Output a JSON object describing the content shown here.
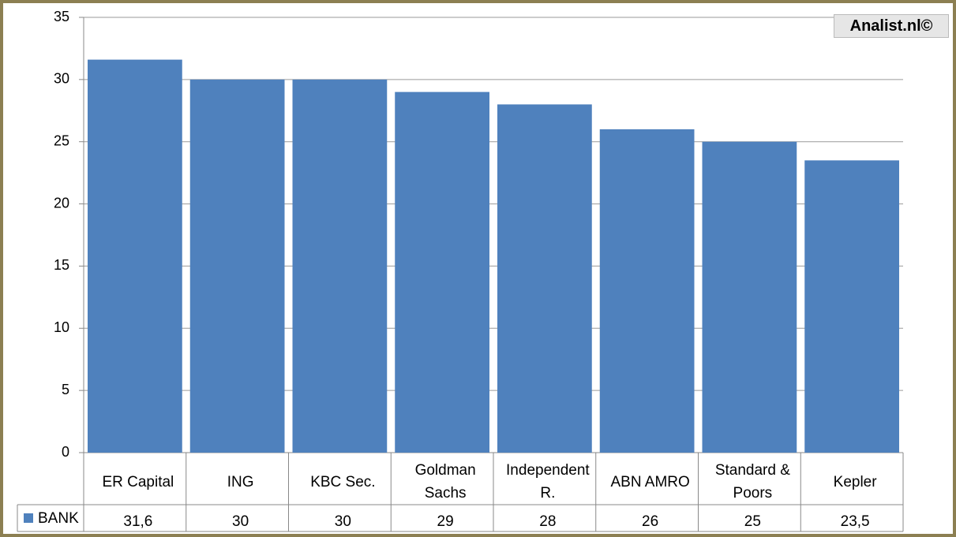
{
  "chart_data": {
    "type": "bar",
    "watermark": "Analist.nl©",
    "categories": [
      "ER Capital",
      "ING",
      "KBC Sec.",
      "Goldman Sachs",
      "Independent R.",
      "ABN AMRO",
      "Standard & Poors",
      "Kepler"
    ],
    "series": [
      {
        "name": "BANK",
        "color": "#4f81bd",
        "values": [
          31.6,
          30,
          30,
          29,
          28,
          26,
          25,
          23.5
        ],
        "value_labels": [
          "31,6",
          "30",
          "30",
          "29",
          "28",
          "26",
          "25",
          "23,5"
        ]
      }
    ],
    "ylim": [
      0,
      35
    ],
    "yticks": [
      0,
      5,
      10,
      15,
      20,
      25,
      30,
      35
    ],
    "grid": true
  }
}
